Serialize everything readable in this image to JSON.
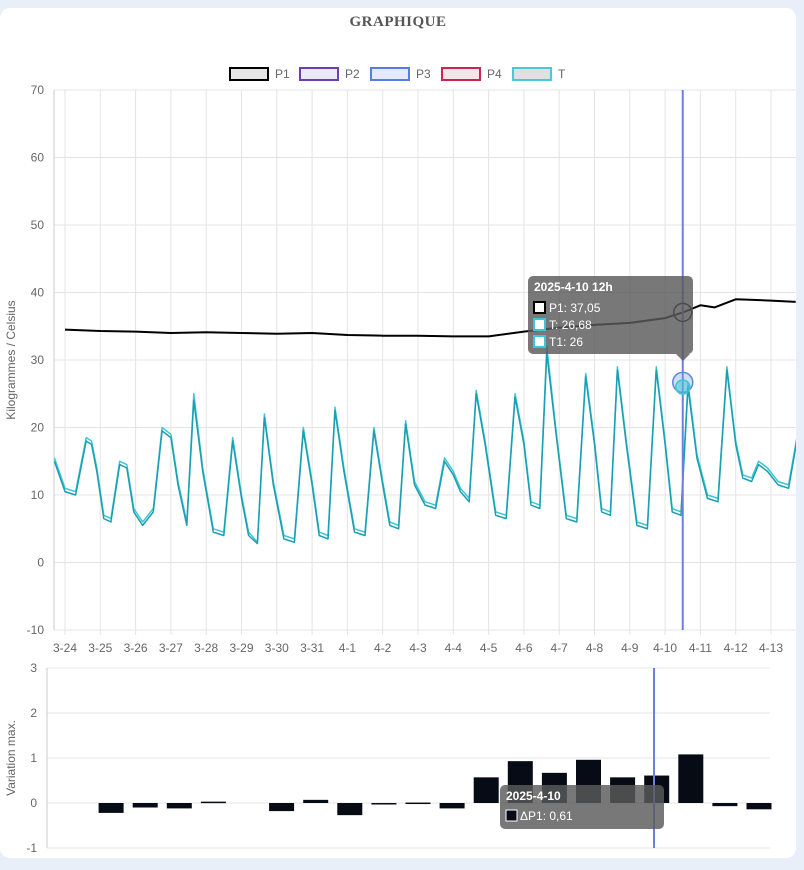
{
  "title": "GRAPHIQUE",
  "legend": [
    {
      "label": "P1",
      "stroke": "#000000",
      "fill": "#e6e6e6"
    },
    {
      "label": "P2",
      "stroke": "#6a3fb0",
      "fill": "#ede8f5"
    },
    {
      "label": "P3",
      "stroke": "#5a7be0",
      "fill": "#e4eafb"
    },
    {
      "label": "P4",
      "stroke": "#c8284f",
      "fill": "#f5e4ea"
    },
    {
      "label": "T",
      "stroke": "#4bc8d8",
      "fill": "#e0e0e0"
    }
  ],
  "tooltip_top": {
    "title": "2025-4-10 12h",
    "lines": [
      "P1: 37,05",
      "T: 26,68",
      "T1: 26"
    ]
  },
  "tooltip_bottom": {
    "title": "2025-4-10",
    "lines": [
      "ΔP1: 0,61"
    ]
  },
  "chart_data": [
    {
      "type": "line",
      "ylabel": "Kilogrammes / Celsius",
      "ylim": [
        -10,
        70
      ],
      "yticks": [
        -10,
        0,
        10,
        20,
        30,
        40,
        50,
        60,
        70
      ],
      "categories": [
        "3-24",
        "3-25",
        "3-26",
        "3-27",
        "3-28",
        "3-29",
        "3-30",
        "3-31",
        "4-1",
        "4-2",
        "4-3",
        "4-4",
        "4-5",
        "4-6",
        "4-7",
        "4-8",
        "4-9",
        "4-10",
        "4-11",
        "4-12",
        "4-13"
      ],
      "grid": true,
      "legend_position": "top",
      "series": [
        {
          "name": "P1",
          "color": "#000000",
          "x": [
            0,
            1,
            2,
            3,
            4,
            5,
            6,
            7,
            8,
            9,
            10,
            11,
            12,
            13,
            14,
            15,
            16,
            17,
            17.5,
            18,
            18.4,
            19,
            19.5,
            20,
            20.7
          ],
          "values": [
            34.5,
            34.3,
            34.2,
            34.0,
            34.1,
            34.0,
            33.9,
            34.0,
            33.7,
            33.6,
            33.6,
            33.5,
            33.5,
            34.2,
            34.8,
            35.2,
            35.5,
            36.2,
            37.05,
            38.1,
            37.8,
            39.0,
            38.9,
            38.8,
            38.6
          ]
        },
        {
          "name": "T",
          "color": "#3ec6d4",
          "x": [
            -0.3,
            0,
            0.3,
            0.6,
            0.75,
            0.9,
            1.1,
            1.3,
            1.55,
            1.75,
            1.95,
            2.2,
            2.5,
            2.75,
            3.0,
            3.2,
            3.45,
            3.65,
            3.9,
            4.2,
            4.5,
            4.75,
            5.0,
            5.2,
            5.45,
            5.65,
            5.9,
            6.2,
            6.5,
            6.75,
            7.0,
            7.2,
            7.45,
            7.65,
            7.9,
            8.2,
            8.5,
            8.75,
            9.0,
            9.2,
            9.45,
            9.65,
            9.9,
            10.2,
            10.5,
            10.75,
            11.0,
            11.2,
            11.45,
            11.65,
            11.9,
            12.2,
            12.5,
            12.75,
            13.0,
            13.2,
            13.45,
            13.65,
            13.9,
            14.2,
            14.5,
            14.75,
            15.0,
            15.2,
            15.45,
            15.65,
            15.9,
            16.2,
            16.5,
            16.75,
            17.0,
            17.2,
            17.45,
            17.65,
            17.9,
            18.2,
            18.5,
            18.75,
            19.0,
            19.2,
            19.45,
            19.65,
            19.9,
            20.2,
            20.5,
            20.8
          ],
          "values": [
            15.5,
            11,
            10.5,
            18.5,
            18,
            14,
            7,
            6.5,
            15,
            14.5,
            8,
            6,
            8,
            20,
            19,
            12,
            6,
            25,
            14,
            5,
            4.5,
            18.5,
            10,
            4.5,
            3,
            22,
            12,
            4,
            3.5,
            20,
            12,
            4.5,
            4,
            23,
            14,
            5,
            4.5,
            20,
            12,
            6,
            5.5,
            21,
            12,
            9,
            8.5,
            15.5,
            13.5,
            11,
            9.5,
            25.5,
            18,
            7.5,
            7,
            25,
            18,
            9,
            8.5,
            32,
            20,
            7,
            6.5,
            28,
            18,
            8,
            7.5,
            29,
            18,
            6,
            5.5,
            29,
            18,
            8,
            7.5,
            26.7,
            16,
            10,
            9.5,
            29,
            18,
            13,
            12.5,
            15,
            14,
            12,
            11.5,
            20.5
          ]
        },
        {
          "name": "T1",
          "color": "#1b9fb0",
          "x": [
            -0.3,
            0,
            0.3,
            0.6,
            0.75,
            0.9,
            1.1,
            1.3,
            1.55,
            1.75,
            1.95,
            2.2,
            2.5,
            2.75,
            3.0,
            3.2,
            3.45,
            3.65,
            3.9,
            4.2,
            4.5,
            4.75,
            5.0,
            5.2,
            5.45,
            5.65,
            5.9,
            6.2,
            6.5,
            6.75,
            7.0,
            7.2,
            7.45,
            7.65,
            7.9,
            8.2,
            8.5,
            8.75,
            9.0,
            9.2,
            9.45,
            9.65,
            9.9,
            10.2,
            10.5,
            10.75,
            11.0,
            11.2,
            11.45,
            11.65,
            11.9,
            12.2,
            12.5,
            12.75,
            13.0,
            13.2,
            13.45,
            13.65,
            13.9,
            14.2,
            14.5,
            14.75,
            15.0,
            15.2,
            15.45,
            15.65,
            15.9,
            16.2,
            16.5,
            16.75,
            17.0,
            17.2,
            17.45,
            17.65,
            17.9,
            18.2,
            18.5,
            18.75,
            19.0,
            19.2,
            19.45,
            19.65,
            19.9,
            20.2,
            20.5,
            20.8
          ],
          "values": [
            15,
            10.5,
            10,
            18,
            17.5,
            13.5,
            6.5,
            6,
            14.5,
            14,
            7.5,
            5.5,
            7.5,
            19.5,
            18.5,
            11.5,
            5.5,
            24,
            13.5,
            4.5,
            4,
            18,
            9.5,
            4,
            2.8,
            21.5,
            11.5,
            3.5,
            3,
            19.5,
            11.5,
            4,
            3.5,
            22.5,
            13.5,
            4.5,
            4,
            19.5,
            11.5,
            5.5,
            5,
            20.5,
            11.5,
            8.5,
            8,
            15,
            13,
            10.5,
            9,
            25,
            17.5,
            7,
            6.5,
            24.5,
            17.5,
            8.5,
            8,
            31,
            19.5,
            6.5,
            6,
            27.5,
            17.5,
            7.5,
            7,
            28.5,
            17.5,
            5.5,
            5,
            28.5,
            17.5,
            7.5,
            7,
            26,
            15.5,
            9.5,
            9,
            28.5,
            17.5,
            12.5,
            12,
            14.5,
            13.5,
            11.5,
            11,
            20
          ]
        }
      ]
    },
    {
      "type": "bar",
      "ylabel": "Variation max.",
      "ylim": [
        -1,
        3
      ],
      "yticks": [
        -1,
        0,
        1,
        2,
        3
      ],
      "categories": [
        "3-24",
        "3-25",
        "3-26",
        "3-27",
        "3-28",
        "3-29",
        "3-30",
        "3-31",
        "4-1",
        "4-2",
        "4-3",
        "4-4",
        "4-5",
        "4-6",
        "4-7",
        "4-8",
        "4-9",
        "4-10",
        "4-11",
        "4-12",
        "4-13"
      ],
      "grid": true,
      "series": [
        {
          "name": "ΔP1",
          "color": "#060b15",
          "values": [
            0,
            -0.22,
            -0.1,
            -0.12,
            0.03,
            0,
            -0.18,
            0.07,
            -0.27,
            -0.02,
            0.01,
            -0.12,
            0.57,
            0.93,
            0.67,
            0.96,
            0.57,
            0.61,
            1.08,
            -0.07,
            -0.14
          ]
        }
      ]
    }
  ]
}
